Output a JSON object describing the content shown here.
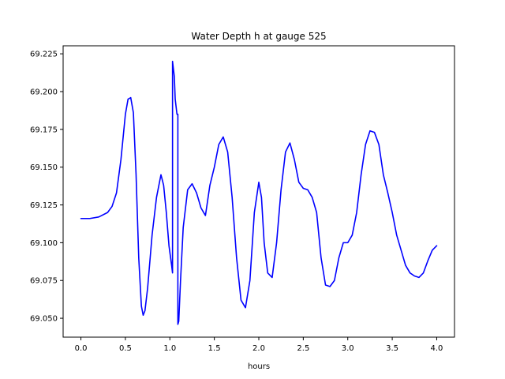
{
  "chart_data": {
    "type": "line",
    "title": "Water Depth h at gauge 525",
    "xlabel": "hours",
    "ylabel": "",
    "xlim": [
      -0.2,
      4.2
    ],
    "ylim": [
      69.0375,
      69.2303
    ],
    "xticks": [
      0.0,
      0.5,
      1.0,
      1.5,
      2.0,
      2.5,
      3.0,
      3.5,
      4.0
    ],
    "xtick_labels": [
      "0.0",
      "0.5",
      "1.0",
      "1.5",
      "2.0",
      "2.5",
      "3.0",
      "3.5",
      "4.0"
    ],
    "yticks": [
      69.05,
      69.075,
      69.1,
      69.125,
      69.15,
      69.175,
      69.2,
      69.225
    ],
    "ytick_labels": [
      "69.050",
      "69.075",
      "69.100",
      "69.125",
      "69.150",
      "69.175",
      "69.200",
      "69.225"
    ],
    "grid": false,
    "series": [
      {
        "color": "#0000ff",
        "x": [
          0.0,
          0.1,
          0.2,
          0.3,
          0.35,
          0.4,
          0.45,
          0.5,
          0.53,
          0.56,
          0.59,
          0.62,
          0.65,
          0.68,
          0.7,
          0.72,
          0.75,
          0.8,
          0.85,
          0.9,
          0.93,
          0.96,
          0.99,
          1.02,
          1.03,
          1.03,
          1.05,
          1.06,
          1.07,
          1.08,
          1.09,
          1.09,
          1.1,
          1.12,
          1.15,
          1.2,
          1.25,
          1.3,
          1.35,
          1.4,
          1.45,
          1.5,
          1.55,
          1.6,
          1.65,
          1.7,
          1.75,
          1.8,
          1.85,
          1.9,
          1.95,
          2.0,
          2.03,
          2.06,
          2.1,
          2.15,
          2.2,
          2.25,
          2.3,
          2.35,
          2.4,
          2.45,
          2.5,
          2.55,
          2.6,
          2.65,
          2.7,
          2.75,
          2.8,
          2.85,
          2.9,
          2.95,
          3.0,
          3.05,
          3.1,
          3.15,
          3.2,
          3.25,
          3.3,
          3.35,
          3.4,
          3.45,
          3.5,
          3.55,
          3.6,
          3.65,
          3.7,
          3.75,
          3.8,
          3.85,
          3.9,
          3.95,
          4.0
        ],
        "y": [
          69.116,
          69.116,
          69.117,
          69.12,
          69.124,
          69.133,
          69.155,
          69.185,
          69.195,
          69.196,
          69.186,
          69.145,
          69.09,
          69.058,
          69.052,
          69.055,
          69.07,
          69.105,
          69.13,
          69.145,
          69.138,
          69.12,
          69.098,
          69.085,
          69.08,
          69.22,
          69.21,
          69.195,
          69.19,
          69.185,
          69.185,
          69.046,
          69.048,
          69.075,
          69.11,
          69.135,
          69.139,
          69.133,
          69.123,
          69.118,
          69.138,
          69.15,
          69.165,
          69.17,
          69.16,
          69.13,
          69.09,
          69.062,
          69.057,
          69.075,
          69.12,
          69.14,
          69.13,
          69.1,
          69.08,
          69.077,
          69.1,
          69.135,
          69.16,
          69.166,
          69.155,
          69.14,
          69.136,
          69.135,
          69.13,
          69.12,
          69.09,
          69.072,
          69.071,
          69.075,
          69.09,
          69.1,
          69.1,
          69.105,
          69.12,
          69.145,
          69.165,
          69.174,
          69.173,
          69.165,
          69.145,
          69.133,
          69.12,
          69.105,
          69.095,
          69.085,
          69.08,
          69.078,
          69.077,
          69.08,
          69.088,
          69.095,
          69.098
        ]
      }
    ]
  }
}
